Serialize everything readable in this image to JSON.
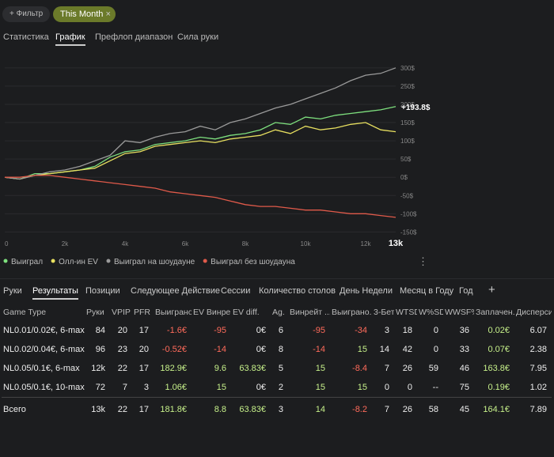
{
  "filters": {
    "add_button": "+ Фильтр",
    "active_filter": "This Month",
    "remove_icon": "×"
  },
  "top_tabs": [
    "Статистика",
    "График",
    "Префлоп диапазон",
    "Сила руки"
  ],
  "chart_data": {
    "type": "line",
    "x": [
      0,
      500,
      1000,
      1500,
      2000,
      2500,
      3000,
      3500,
      4000,
      4500,
      5000,
      5500,
      6000,
      6500,
      7000,
      7500,
      8000,
      8500,
      9000,
      9500,
      10000,
      10500,
      11000,
      11500,
      12000,
      12500,
      13000
    ],
    "series": [
      {
        "name": "Выиграл",
        "color": "#7ee07e",
        "values": [
          0,
          -5,
          10,
          10,
          15,
          20,
          30,
          55,
          70,
          75,
          90,
          95,
          100,
          110,
          105,
          115,
          120,
          130,
          150,
          145,
          165,
          160,
          170,
          175,
          180,
          185,
          193.8
        ]
      },
      {
        "name": "Олл-ин EV",
        "color": "#e8e060",
        "values": [
          0,
          -5,
          5,
          10,
          15,
          20,
          25,
          45,
          65,
          70,
          85,
          90,
          95,
          100,
          95,
          105,
          110,
          115,
          130,
          120,
          140,
          130,
          135,
          145,
          150,
          130,
          125
        ]
      },
      {
        "name": "Выиграл на шоудауне",
        "color": "#9a9a9a",
        "values": [
          0,
          -5,
          5,
          15,
          20,
          30,
          45,
          60,
          100,
          95,
          110,
          120,
          125,
          140,
          130,
          150,
          160,
          175,
          190,
          200,
          215,
          230,
          245,
          265,
          280,
          285,
          300
        ]
      },
      {
        "name": "Выиграл без шоудауна",
        "color": "#e05a4a",
        "values": [
          0,
          0,
          5,
          5,
          0,
          -5,
          -10,
          -15,
          -20,
          -25,
          -30,
          -40,
          -45,
          -50,
          -55,
          -65,
          -75,
          -80,
          -80,
          -85,
          -90,
          -90,
          -95,
          -100,
          -100,
          -105,
          -110
        ]
      }
    ],
    "end_label": "+193.8$",
    "xlim": [
      0,
      13000
    ],
    "xticks": [
      0,
      {
        "value": 2000,
        "label": "2k"
      },
      {
        "value": 4000,
        "label": "4k"
      },
      {
        "value": 6000,
        "label": "6k"
      },
      {
        "value": 8000,
        "label": "8k"
      },
      {
        "value": 10000,
        "label": "10k"
      },
      {
        "value": 12000,
        "label": "12k"
      },
      {
        "value": 13000,
        "label": "13k"
      }
    ],
    "ylim": [
      -160,
      330
    ],
    "yticks": [
      {
        "value": -150,
        "label": "-150$"
      },
      {
        "value": -100,
        "label": "-100$"
      },
      {
        "value": -50,
        "label": "-50$"
      },
      {
        "value": 0,
        "label": "0$"
      },
      {
        "value": 50,
        "label": "50$"
      },
      {
        "value": 100,
        "label": "100$"
      },
      {
        "value": 150,
        "label": "150$"
      },
      {
        "value": 200,
        "label": "200$"
      },
      {
        "value": 250,
        "label": "250$"
      },
      {
        "value": 300,
        "label": "300$"
      }
    ],
    "grid": true
  },
  "bottom_tabs": [
    "Руки",
    "Результаты",
    "Позиции",
    "Следующее Действие",
    "Сессии",
    "Количество столов",
    "День Недели",
    "Месяц в Году",
    "Год",
    "+"
  ],
  "table": {
    "header": [
      "Game Type",
      "Руки",
      "VPIP",
      "PFR",
      "Выиграно",
      "EV Винре...",
      "EV diff.",
      "Ag.",
      "Винрейт ...",
      "Выиграно...",
      "3-Бет",
      "WTSD",
      "W%SD",
      "WWSF%",
      "Заплачен...",
      "Дисперси..."
    ],
    "rows": [
      [
        "NL0.01/0.02€, 6-max",
        "84",
        "20",
        "17",
        "-1.6€",
        "-95",
        "0€",
        "6",
        "-95",
        "-34",
        "3",
        "18",
        "0",
        "36",
        "0.02€",
        "6.07"
      ],
      [
        "NL0.02/0.04€, 6-max",
        "96",
        "23",
        "20",
        "-0.52€",
        "-14",
        "0€",
        "8",
        "-14",
        "15",
        "14",
        "42",
        "0",
        "33",
        "0.07€",
        "2.38"
      ],
      [
        "NL0.05/0.1€, 6-max",
        "12k",
        "22",
        "17",
        "182.9€",
        "9.6",
        "63.83€",
        "5",
        "15",
        "-8.4",
        "7",
        "26",
        "59",
        "46",
        "163.8€",
        "7.95"
      ],
      [
        "NL0.05/0.1€, 10-max",
        "72",
        "7",
        "3",
        "1.06€",
        "15",
        "0€",
        "2",
        "15",
        "15",
        "0",
        "0",
        "--",
        "75",
        "0.19€",
        "1.02"
      ]
    ],
    "total": [
      "Всего",
      "13k",
      "22",
      "17",
      "181.8€",
      "8.8",
      "63.83€",
      "3",
      "14",
      "-8.2",
      "7",
      "26",
      "58",
      "45",
      "164.1€",
      "7.89"
    ]
  }
}
